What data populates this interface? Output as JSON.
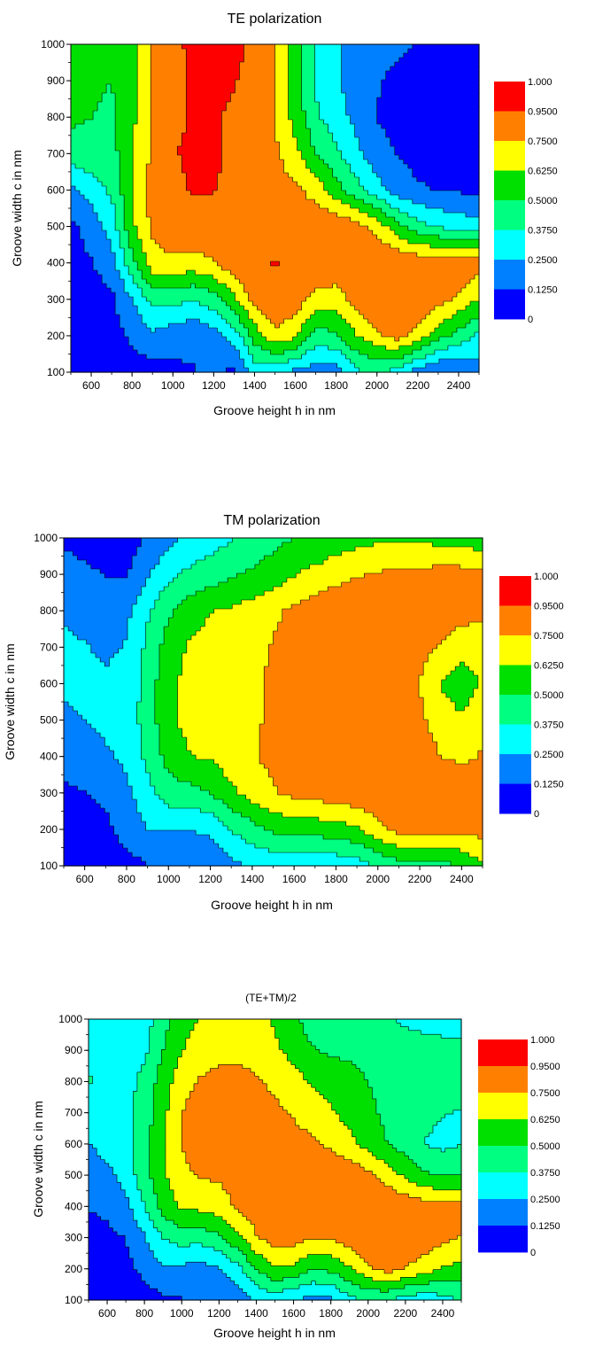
{
  "colors": {
    "levels": [
      "#0000ff",
      "#0080ff",
      "#00ffff",
      "#00ff80",
      "#00e000",
      "#ffff00",
      "#ff8000",
      "#ff0000"
    ]
  },
  "chart_data": [
    {
      "type": "contour",
      "title": "TE polarization",
      "xlabel": "Groove height h in nm",
      "ylabel": "Groove width c in nm",
      "xlim": [
        500,
        2500
      ],
      "ylim": [
        100,
        1000
      ],
      "xticks": [
        "600",
        "800",
        "1000",
        "1200",
        "1400",
        "1600",
        "1800",
        "2000",
        "2200",
        "2400"
      ],
      "yticks": [
        "100",
        "200",
        "300",
        "400",
        "500",
        "600",
        "700",
        "800",
        "900",
        "1000"
      ],
      "legend": [
        "1.000",
        "0.9500",
        "0.7500",
        "0.6250",
        "0.5000",
        "0.3750",
        "0.2500",
        "0.1250",
        "0"
      ],
      "legend_position": "right",
      "x": [
        500,
        600,
        700,
        800,
        900,
        1000,
        1100,
        1200,
        1300,
        1400,
        1500,
        1600,
        1700,
        1800,
        1900,
        2000,
        2100,
        2200,
        2300,
        2400,
        2500
      ],
      "y": [
        100,
        200,
        300,
        400,
        500,
        600,
        700,
        800,
        900,
        1000
      ],
      "z": [
        [
          0.05,
          0.05,
          0.05,
          0.06,
          0.08,
          0.1,
          0.12,
          0.14,
          0.1,
          0.3,
          0.3,
          0.22,
          0.18,
          0.18,
          0.35,
          0.4,
          0.32,
          0.2,
          0.12,
          0.14,
          0.18
        ],
        [
          0.05,
          0.06,
          0.08,
          0.15,
          0.22,
          0.18,
          0.14,
          0.2,
          0.3,
          0.55,
          0.72,
          0.65,
          0.45,
          0.48,
          0.62,
          0.72,
          0.8,
          0.7,
          0.55,
          0.45,
          0.35
        ],
        [
          0.05,
          0.06,
          0.1,
          0.25,
          0.42,
          0.42,
          0.38,
          0.45,
          0.6,
          0.8,
          0.88,
          0.82,
          0.7,
          0.68,
          0.8,
          0.93,
          0.92,
          0.86,
          0.8,
          0.72,
          0.62
        ],
        [
          0.07,
          0.12,
          0.2,
          0.45,
          0.7,
          0.72,
          0.7,
          0.74,
          0.84,
          0.9,
          0.96,
          0.93,
          0.86,
          0.86,
          0.88,
          0.88,
          0.86,
          0.84,
          0.84,
          0.86,
          0.82
        ],
        [
          0.1,
          0.18,
          0.3,
          0.6,
          0.78,
          0.84,
          0.86,
          0.86,
          0.87,
          0.86,
          0.84,
          0.82,
          0.84,
          0.86,
          0.8,
          0.7,
          0.55,
          0.42,
          0.36,
          0.33,
          0.3
        ],
        [
          0.22,
          0.3,
          0.4,
          0.62,
          0.8,
          0.9,
          0.97,
          0.96,
          0.9,
          0.84,
          0.8,
          0.78,
          0.7,
          0.55,
          0.42,
          0.3,
          0.18,
          0.14,
          0.12,
          0.11,
          0.1
        ],
        [
          0.45,
          0.46,
          0.46,
          0.6,
          0.78,
          0.94,
          0.98,
          0.97,
          0.93,
          0.86,
          0.78,
          0.66,
          0.5,
          0.4,
          0.28,
          0.18,
          0.12,
          0.09,
          0.08,
          0.07,
          0.07
        ],
        [
          0.52,
          0.5,
          0.48,
          0.6,
          0.76,
          0.92,
          0.96,
          0.96,
          0.93,
          0.84,
          0.74,
          0.58,
          0.4,
          0.3,
          0.22,
          0.12,
          0.08,
          0.06,
          0.05,
          0.05,
          0.05
        ],
        [
          0.55,
          0.52,
          0.5,
          0.58,
          0.76,
          0.9,
          0.97,
          0.98,
          0.96,
          0.9,
          0.74,
          0.54,
          0.36,
          0.26,
          0.2,
          0.14,
          0.08,
          0.05,
          0.04,
          0.04,
          0.04
        ],
        [
          0.56,
          0.55,
          0.52,
          0.56,
          0.78,
          0.92,
          0.98,
          0.99,
          0.98,
          0.93,
          0.76,
          0.56,
          0.36,
          0.26,
          0.22,
          0.18,
          0.16,
          0.12,
          0.1,
          0.08,
          0.08
        ]
      ]
    },
    {
      "type": "contour",
      "title": "TM polarization",
      "xlabel": "Groove height h in nm",
      "ylabel": "Groove width c in nm",
      "xlim": [
        500,
        2500
      ],
      "ylim": [
        100,
        1000
      ],
      "xticks": [
        "600",
        "800",
        "1000",
        "1200",
        "1400",
        "1600",
        "1800",
        "2000",
        "2200",
        "2400"
      ],
      "yticks": [
        "100",
        "200",
        "300",
        "400",
        "500",
        "600",
        "700",
        "800",
        "900",
        "1000"
      ],
      "legend": [
        "1.000",
        "0.9500",
        "0.7500",
        "0.6250",
        "0.5000",
        "0.3750",
        "0.2500",
        "0.1250",
        "0"
      ],
      "legend_position": "right",
      "x": [
        500,
        600,
        700,
        800,
        900,
        1000,
        1100,
        1200,
        1300,
        1400,
        1500,
        1600,
        1700,
        1800,
        1900,
        2000,
        2100,
        2200,
        2300,
        2400,
        2500
      ],
      "y": [
        100,
        200,
        300,
        400,
        500,
        600,
        700,
        800,
        900,
        1000
      ],
      "z": [
        [
          0.05,
          0.05,
          0.06,
          0.08,
          0.12,
          0.13,
          0.13,
          0.14,
          0.22,
          0.26,
          0.28,
          0.28,
          0.25,
          0.28,
          0.32,
          0.38,
          0.44,
          0.44,
          0.45,
          0.52,
          0.6
        ],
        [
          0.08,
          0.08,
          0.1,
          0.17,
          0.25,
          0.26,
          0.25,
          0.28,
          0.38,
          0.45,
          0.52,
          0.55,
          0.55,
          0.58,
          0.6,
          0.72,
          0.8,
          0.8,
          0.8,
          0.78,
          0.8
        ],
        [
          0.1,
          0.12,
          0.15,
          0.22,
          0.34,
          0.44,
          0.46,
          0.5,
          0.6,
          0.68,
          0.74,
          0.78,
          0.8,
          0.82,
          0.84,
          0.86,
          0.86,
          0.86,
          0.86,
          0.86,
          0.86
        ],
        [
          0.18,
          0.2,
          0.23,
          0.28,
          0.4,
          0.55,
          0.62,
          0.64,
          0.7,
          0.74,
          0.78,
          0.82,
          0.86,
          0.88,
          0.88,
          0.88,
          0.86,
          0.84,
          0.75,
          0.72,
          0.76
        ],
        [
          0.22,
          0.25,
          0.28,
          0.32,
          0.42,
          0.6,
          0.66,
          0.68,
          0.72,
          0.74,
          0.76,
          0.8,
          0.85,
          0.88,
          0.88,
          0.86,
          0.84,
          0.78,
          0.68,
          0.64,
          0.72
        ],
        [
          0.28,
          0.3,
          0.28,
          0.3,
          0.42,
          0.6,
          0.66,
          0.68,
          0.72,
          0.74,
          0.76,
          0.8,
          0.86,
          0.88,
          0.9,
          0.86,
          0.82,
          0.74,
          0.62,
          0.56,
          0.64
        ],
        [
          0.27,
          0.26,
          0.22,
          0.26,
          0.4,
          0.56,
          0.64,
          0.68,
          0.7,
          0.72,
          0.76,
          0.82,
          0.86,
          0.88,
          0.88,
          0.86,
          0.84,
          0.8,
          0.74,
          0.68,
          0.66
        ],
        [
          0.24,
          0.2,
          0.18,
          0.22,
          0.36,
          0.48,
          0.56,
          0.62,
          0.64,
          0.68,
          0.72,
          0.78,
          0.82,
          0.86,
          0.88,
          0.88,
          0.86,
          0.84,
          0.82,
          0.8,
          0.78
        ],
        [
          0.18,
          0.15,
          0.12,
          0.12,
          0.24,
          0.34,
          0.4,
          0.44,
          0.48,
          0.52,
          0.56,
          0.62,
          0.66,
          0.7,
          0.74,
          0.76,
          0.78,
          0.78,
          0.8,
          0.8,
          0.78
        ],
        [
          0.1,
          0.08,
          0.07,
          0.06,
          0.14,
          0.22,
          0.28,
          0.32,
          0.36,
          0.42,
          0.46,
          0.5,
          0.52,
          0.56,
          0.58,
          0.6,
          0.6,
          0.6,
          0.58,
          0.56,
          0.55
        ]
      ]
    },
    {
      "type": "contour",
      "title": "(TE+TM)/2",
      "xlabel": "Groove height h in nm",
      "ylabel": "Groove width c in nm",
      "xlim": [
        500,
        2500
      ],
      "ylim": [
        100,
        1000
      ],
      "xticks": [
        "600",
        "800",
        "1000",
        "1200",
        "1400",
        "1600",
        "1800",
        "2000",
        "2200",
        "2400"
      ],
      "yticks": [
        "100",
        "200",
        "300",
        "400",
        "500",
        "600",
        "700",
        "800",
        "900",
        "1000"
      ],
      "legend": [
        "1.000",
        "0.9500",
        "0.7500",
        "0.6250",
        "0.5000",
        "0.3750",
        "0.2500",
        "0.1250",
        "0"
      ],
      "legend_position": "right",
      "x": [
        500,
        600,
        700,
        800,
        900,
        1000,
        1100,
        1200,
        1300,
        1400,
        1500,
        1600,
        1700,
        1800,
        1900,
        2000,
        2100,
        2200,
        2300,
        2400,
        2500
      ],
      "y": [
        100,
        200,
        300,
        400,
        500,
        600,
        700,
        800,
        900,
        1000
      ],
      "z": [
        [
          0.05,
          0.05,
          0.06,
          0.07,
          0.1,
          0.12,
          0.13,
          0.14,
          0.16,
          0.28,
          0.29,
          0.25,
          0.22,
          0.23,
          0.34,
          0.39,
          0.38,
          0.32,
          0.29,
          0.33,
          0.39
        ],
        [
          0.07,
          0.07,
          0.09,
          0.16,
          0.24,
          0.22,
          0.2,
          0.24,
          0.34,
          0.5,
          0.62,
          0.6,
          0.5,
          0.53,
          0.61,
          0.72,
          0.8,
          0.75,
          0.68,
          0.62,
          0.58
        ],
        [
          0.08,
          0.09,
          0.13,
          0.24,
          0.38,
          0.43,
          0.42,
          0.48,
          0.6,
          0.74,
          0.81,
          0.8,
          0.75,
          0.75,
          0.82,
          0.9,
          0.89,
          0.86,
          0.83,
          0.79,
          0.74
        ],
        [
          0.13,
          0.16,
          0.22,
          0.37,
          0.55,
          0.64,
          0.66,
          0.69,
          0.77,
          0.82,
          0.87,
          0.88,
          0.86,
          0.87,
          0.88,
          0.88,
          0.86,
          0.84,
          0.8,
          0.79,
          0.79
        ],
        [
          0.16,
          0.22,
          0.29,
          0.46,
          0.6,
          0.72,
          0.76,
          0.77,
          0.8,
          0.8,
          0.8,
          0.81,
          0.85,
          0.87,
          0.84,
          0.78,
          0.7,
          0.6,
          0.52,
          0.49,
          0.51
        ],
        [
          0.25,
          0.3,
          0.34,
          0.46,
          0.61,
          0.75,
          0.82,
          0.82,
          0.81,
          0.79,
          0.78,
          0.79,
          0.78,
          0.72,
          0.66,
          0.58,
          0.5,
          0.44,
          0.37,
          0.34,
          0.37
        ],
        [
          0.36,
          0.36,
          0.34,
          0.43,
          0.59,
          0.75,
          0.81,
          0.83,
          0.82,
          0.79,
          0.77,
          0.74,
          0.68,
          0.64,
          0.58,
          0.52,
          0.48,
          0.45,
          0.41,
          0.38,
          0.37
        ],
        [
          0.38,
          0.35,
          0.33,
          0.41,
          0.56,
          0.7,
          0.76,
          0.79,
          0.79,
          0.76,
          0.73,
          0.68,
          0.61,
          0.58,
          0.55,
          0.5,
          0.47,
          0.45,
          0.44,
          0.43,
          0.42
        ],
        [
          0.37,
          0.34,
          0.31,
          0.35,
          0.5,
          0.62,
          0.69,
          0.71,
          0.72,
          0.71,
          0.65,
          0.58,
          0.51,
          0.48,
          0.47,
          0.45,
          0.43,
          0.42,
          0.42,
          0.42,
          0.41
        ],
        [
          0.33,
          0.32,
          0.3,
          0.31,
          0.46,
          0.57,
          0.63,
          0.66,
          0.67,
          0.68,
          0.61,
          0.53,
          0.44,
          0.41,
          0.4,
          0.39,
          0.38,
          0.36,
          0.34,
          0.32,
          0.32
        ]
      ]
    }
  ]
}
